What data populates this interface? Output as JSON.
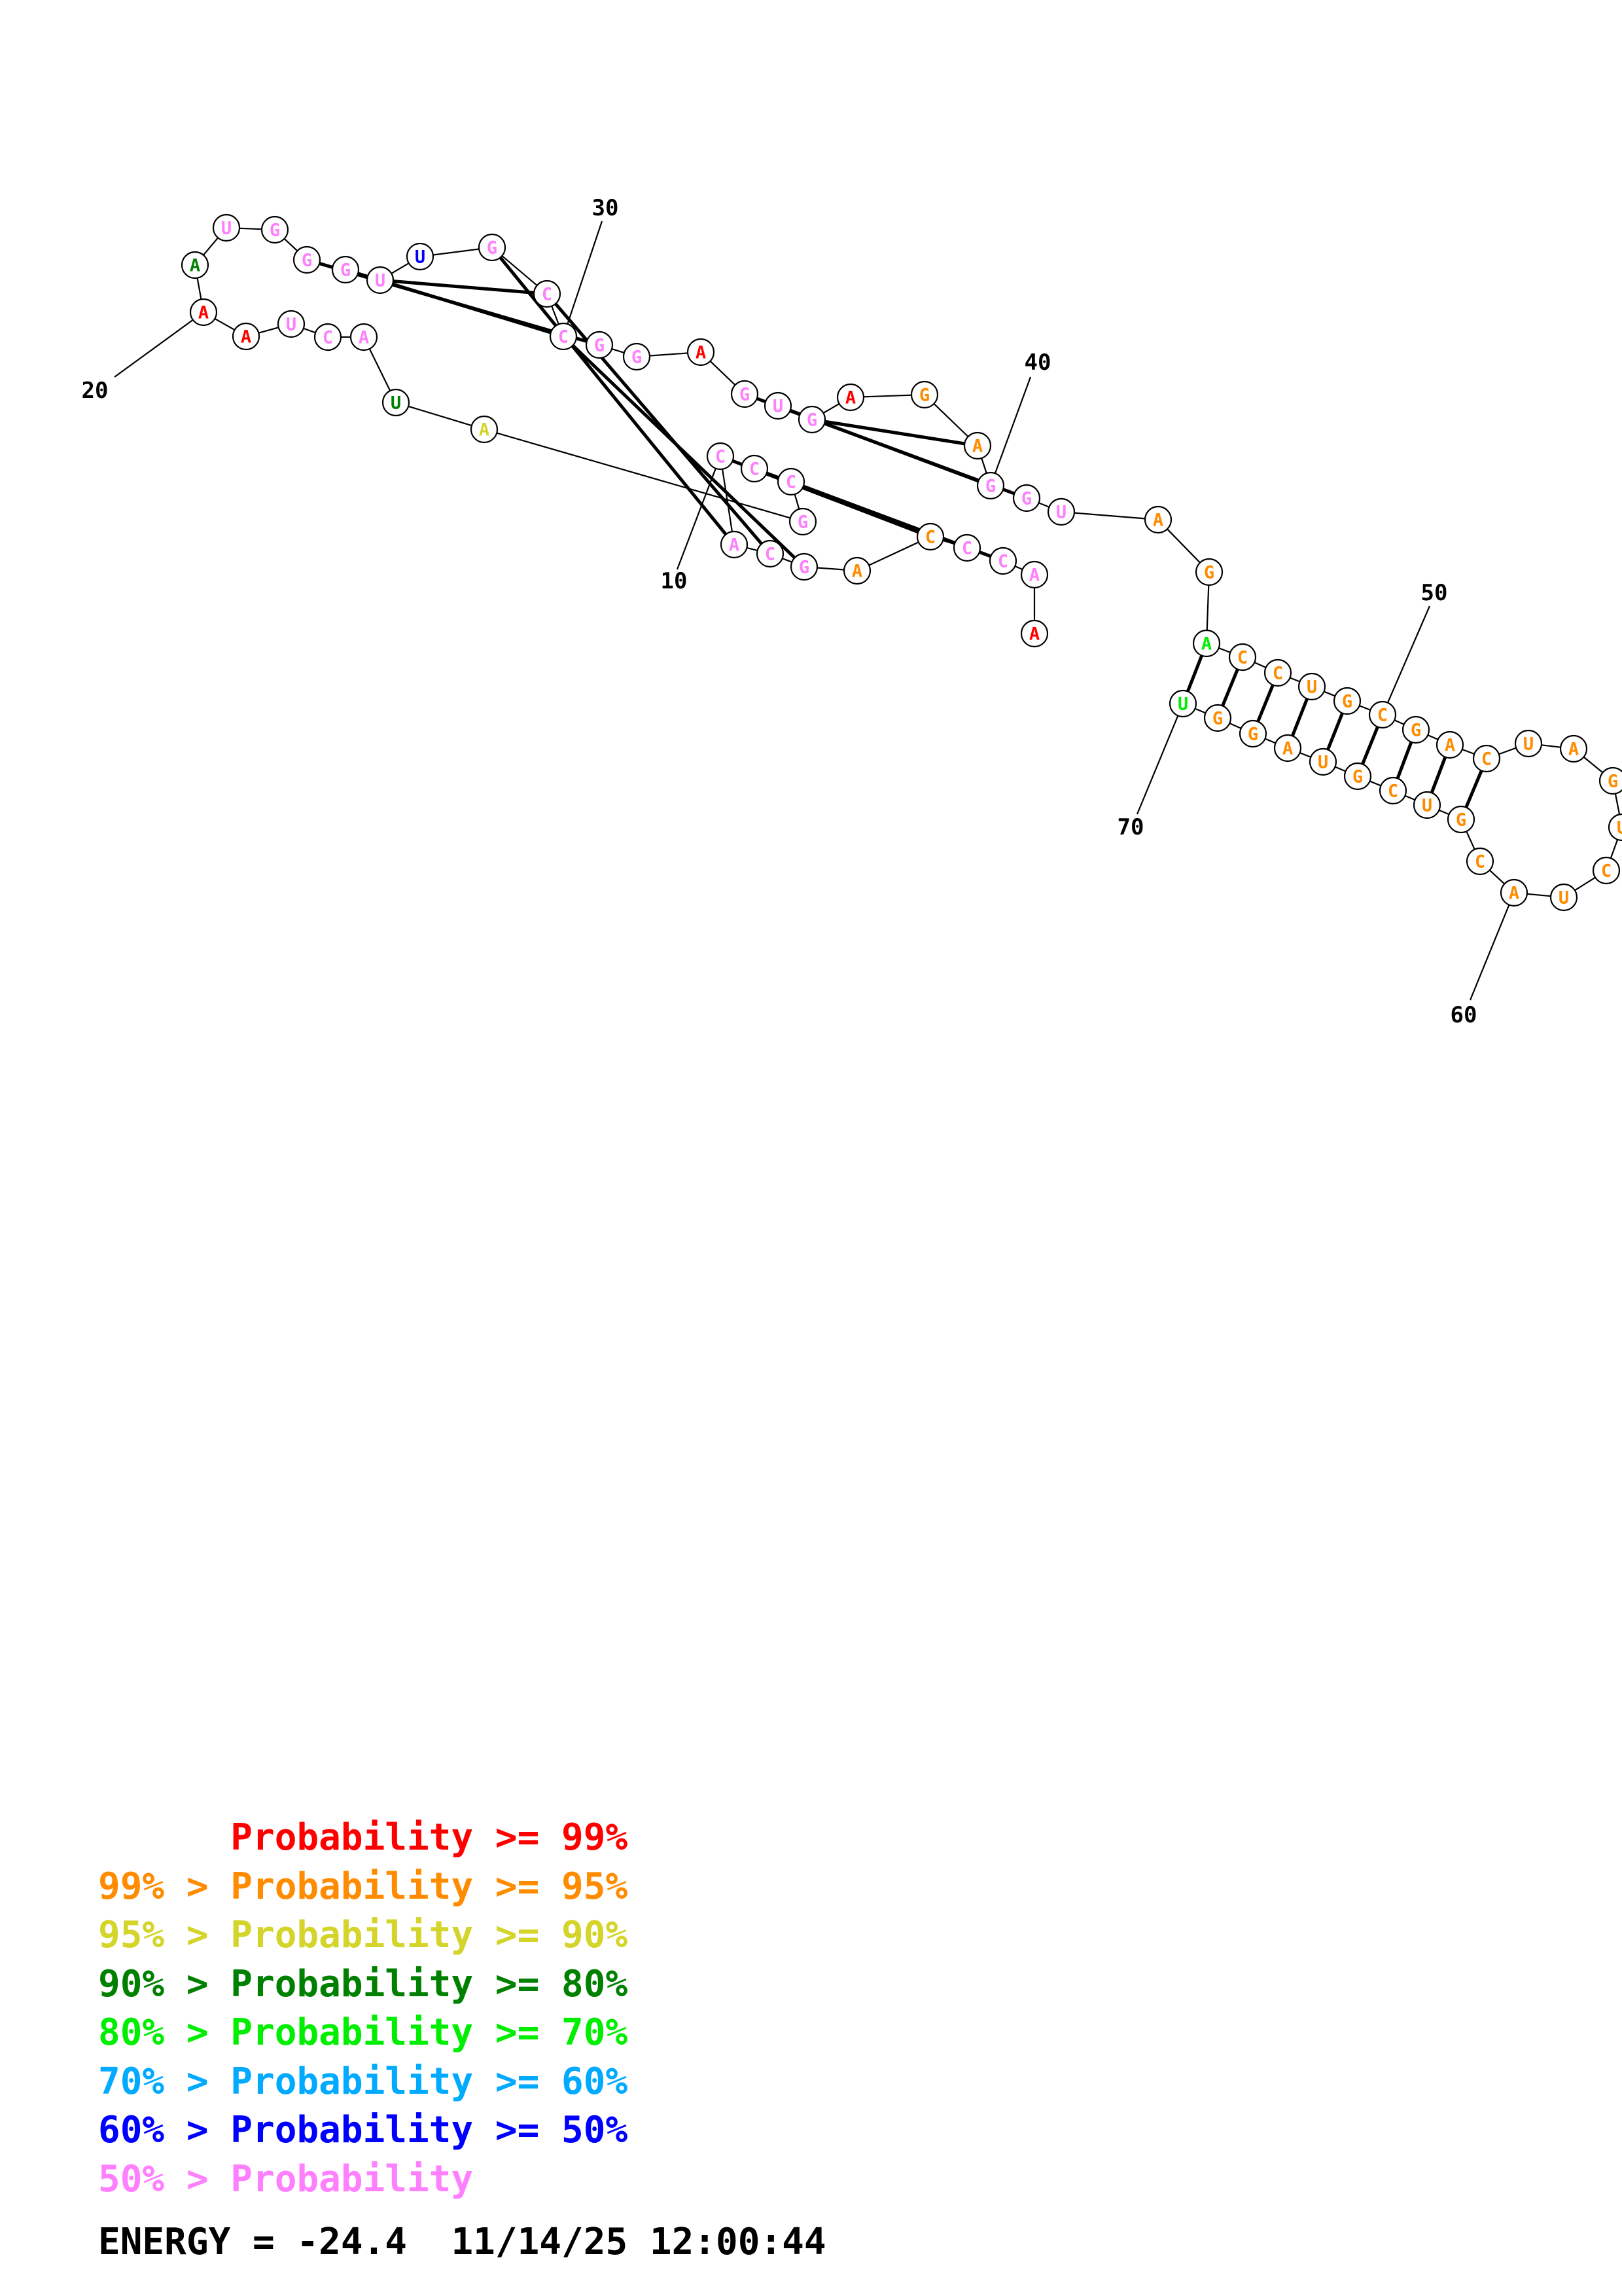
{
  "colors": {
    "p99": "#ff0000",
    "p95": "#ff8c00",
    "p90": "#d4d42a",
    "p80": "#008000",
    "p70": "#00ee00",
    "p60": "#00aaff",
    "p50": "#0000ff",
    "low": "#ff80ff"
  },
  "nucleotides": [
    {
      "n": 1,
      "base": "A",
      "prob": "p99"
    },
    {
      "n": 2,
      "base": "A",
      "prob": "low"
    },
    {
      "n": 3,
      "base": "C",
      "prob": "low"
    },
    {
      "n": 4,
      "base": "C",
      "prob": "low"
    },
    {
      "n": 5,
      "base": "C",
      "prob": "p95"
    },
    {
      "n": 6,
      "base": "A",
      "prob": "p95"
    },
    {
      "n": 7,
      "base": "G",
      "prob": "low"
    },
    {
      "n": 8,
      "base": "C",
      "prob": "low"
    },
    {
      "n": 9,
      "base": "A",
      "prob": "low"
    },
    {
      "n": 10,
      "base": "C",
      "prob": "low"
    },
    {
      "n": 11,
      "base": "C",
      "prob": "low"
    },
    {
      "n": 12,
      "base": "C",
      "prob": "low"
    },
    {
      "n": 13,
      "base": "G",
      "prob": "low"
    },
    {
      "n": 14,
      "base": "A",
      "prob": "p90"
    },
    {
      "n": 15,
      "base": "U",
      "prob": "p80"
    },
    {
      "n": 16,
      "base": "A",
      "prob": "low"
    },
    {
      "n": 17,
      "base": "C",
      "prob": "low"
    },
    {
      "n": 18,
      "base": "U",
      "prob": "low"
    },
    {
      "n": 19,
      "base": "A",
      "prob": "p99"
    },
    {
      "n": 20,
      "base": "A",
      "prob": "p99"
    },
    {
      "n": 21,
      "base": "A",
      "prob": "p80"
    },
    {
      "n": 22,
      "base": "U",
      "prob": "low"
    },
    {
      "n": 23,
      "base": "G",
      "prob": "low"
    },
    {
      "n": 24,
      "base": "G",
      "prob": "low"
    },
    {
      "n": 25,
      "base": "G",
      "prob": "low"
    },
    {
      "n": 26,
      "base": "U",
      "prob": "low"
    },
    {
      "n": 27,
      "base": "U",
      "prob": "p50"
    },
    {
      "n": 28,
      "base": "G",
      "prob": "low"
    },
    {
      "n": 29,
      "base": "C",
      "prob": "low"
    },
    {
      "n": 30,
      "base": "C",
      "prob": "low"
    },
    {
      "n": 31,
      "base": "G",
      "prob": "low"
    },
    {
      "n": 32,
      "base": "G",
      "prob": "low"
    },
    {
      "n": 33,
      "base": "A",
      "prob": "p99"
    },
    {
      "n": 34,
      "base": "G",
      "prob": "low"
    },
    {
      "n": 35,
      "base": "U",
      "prob": "low"
    },
    {
      "n": 36,
      "base": "G",
      "prob": "low"
    },
    {
      "n": 37,
      "base": "A",
      "prob": "p99"
    },
    {
      "n": 38,
      "base": "G",
      "prob": "p95"
    },
    {
      "n": 39,
      "base": "A",
      "prob": "p95"
    },
    {
      "n": 40,
      "base": "G",
      "prob": "low"
    },
    {
      "n": 41,
      "base": "G",
      "prob": "low"
    },
    {
      "n": 42,
      "base": "U",
      "prob": "low"
    },
    {
      "n": 43,
      "base": "A",
      "prob": "p95"
    },
    {
      "n": 44,
      "base": "G",
      "prob": "p95"
    },
    {
      "n": 45,
      "base": "A",
      "prob": "p70"
    },
    {
      "n": 46,
      "base": "C",
      "prob": "p95"
    },
    {
      "n": 47,
      "base": "C",
      "prob": "p95"
    },
    {
      "n": 48,
      "base": "U",
      "prob": "p95"
    },
    {
      "n": 49,
      "base": "G",
      "prob": "p95"
    },
    {
      "n": 50,
      "base": "C",
      "prob": "p95"
    },
    {
      "n": 51,
      "base": "G",
      "prob": "p95"
    },
    {
      "n": 52,
      "base": "A",
      "prob": "p95"
    },
    {
      "n": 53,
      "base": "C",
      "prob": "p95"
    },
    {
      "n": 54,
      "base": "U",
      "prob": "p95"
    },
    {
      "n": 55,
      "base": "A",
      "prob": "p95"
    },
    {
      "n": 56,
      "base": "G",
      "prob": "p95"
    },
    {
      "n": 57,
      "base": "U",
      "prob": "p95"
    },
    {
      "n": 58,
      "base": "C",
      "prob": "p95"
    },
    {
      "n": 59,
      "base": "U",
      "prob": "p95"
    },
    {
      "n": 60,
      "base": "A",
      "prob": "p95"
    },
    {
      "n": 61,
      "base": "C",
      "prob": "p95"
    },
    {
      "n": 62,
      "base": "G",
      "prob": "p95"
    },
    {
      "n": 63,
      "base": "U",
      "prob": "p95"
    },
    {
      "n": 64,
      "base": "C",
      "prob": "p95"
    },
    {
      "n": 65,
      "base": "G",
      "prob": "p95"
    },
    {
      "n": 66,
      "base": "U",
      "prob": "p95"
    },
    {
      "n": 67,
      "base": "A",
      "prob": "p95"
    },
    {
      "n": 68,
      "base": "G",
      "prob": "p95"
    },
    {
      "n": 69,
      "base": "G",
      "prob": "p95"
    },
    {
      "n": 70,
      "base": "U",
      "prob": "p70"
    }
  ],
  "pairs": [
    [
      3,
      12
    ],
    [
      4,
      11
    ],
    [
      5,
      10
    ],
    [
      7,
      30
    ],
    [
      8,
      29
    ],
    [
      9,
      28
    ],
    [
      24,
      31
    ],
    [
      25,
      30
    ],
    [
      26,
      29
    ],
    [
      34,
      41
    ],
    [
      35,
      40
    ],
    [
      36,
      39
    ],
    [
      45,
      70
    ],
    [
      46,
      69
    ],
    [
      47,
      68
    ],
    [
      48,
      67
    ],
    [
      49,
      66
    ],
    [
      50,
      65
    ],
    [
      51,
      64
    ],
    [
      52,
      63
    ],
    [
      53,
      62
    ]
  ],
  "tick_labels": [
    "10",
    "20",
    "30",
    "40",
    "50",
    "60",
    "70"
  ],
  "legend": [
    {
      "prefix": "",
      "range": "Probability >= 99%",
      "color": "p99"
    },
    {
      "prefix": "99% > ",
      "range": "Probability >= 95%",
      "color": "p95"
    },
    {
      "prefix": "95% > ",
      "range": "Probability >= 90%",
      "color": "p90"
    },
    {
      "prefix": "90% > ",
      "range": "Probability >= 80%",
      "color": "p80"
    },
    {
      "prefix": "80% > ",
      "range": "Probability >= 70%",
      "color": "p70"
    },
    {
      "prefix": "70% > ",
      "range": "Probability >= 60%",
      "color": "p60"
    },
    {
      "prefix": "60% > ",
      "range": "Probability >= 50%",
      "color": "p50"
    },
    {
      "prefix": "50% > ",
      "range": "Probability",
      "color": "low"
    }
  ],
  "energy_text": "ENERGY = -24.4  11/14/25 12:00:44"
}
